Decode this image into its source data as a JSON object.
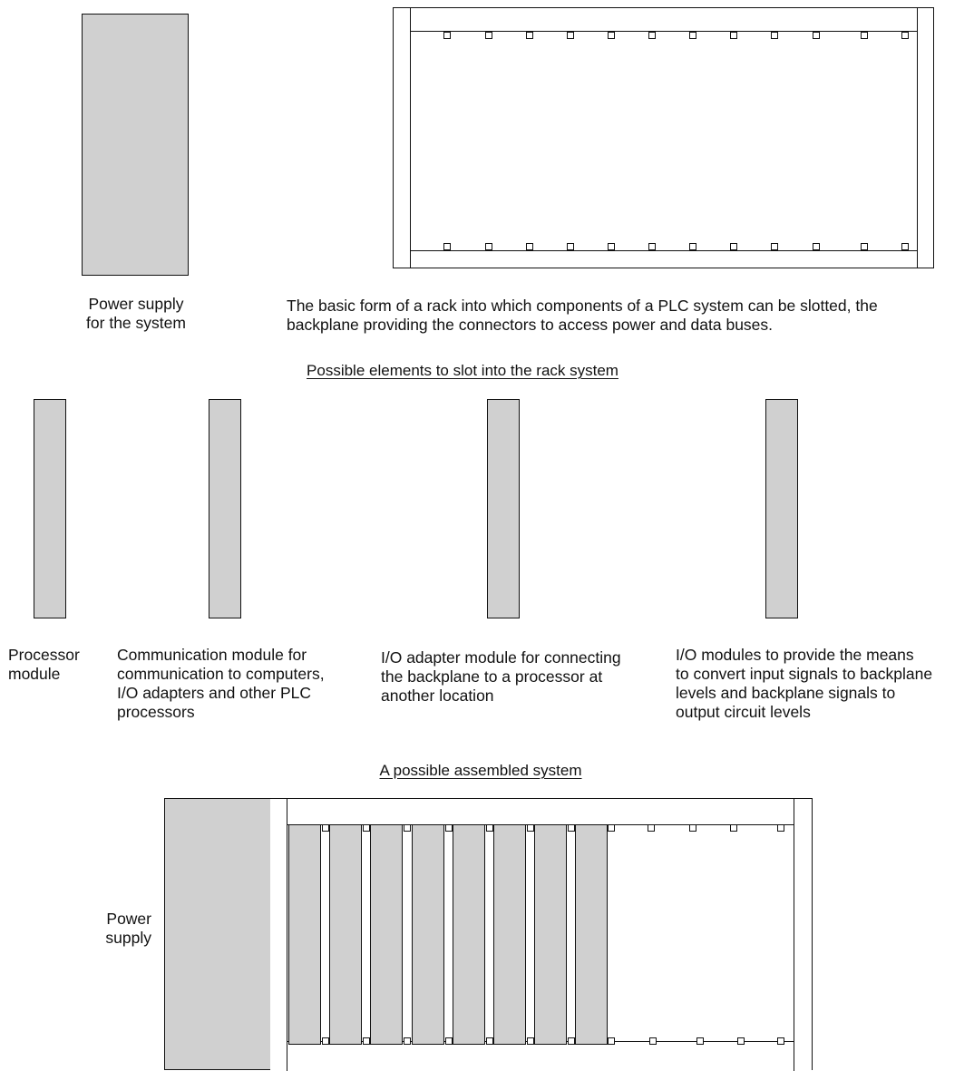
{
  "top": {
    "power_supply_label": "Power supply\nfor the system",
    "rack_caption": "The basic form of a rack into which components of a PLC system can be slotted, the\nbackplane providing the connectors to access power and data buses."
  },
  "elements": {
    "heading": "Possible elements to slot into the rack system",
    "processor_label": "Processor\nmodule",
    "comm_label": "Communication module for\ncommunication to computers,\nI/O adapters and other PLC\nprocessors",
    "adapter_label": "I/O adapter module for connecting\nthe backplane to a processor at\nanother location",
    "io_label": "I/O modules to provide the means\nto convert input signals to backplane\nlevels and backplane signals to\noutput circuit levels"
  },
  "assembled": {
    "heading": "A possible assembled system",
    "power_label": "Power\nsupply"
  },
  "colors": {
    "module_fill": "#d0d0d0",
    "line": "#111111"
  }
}
